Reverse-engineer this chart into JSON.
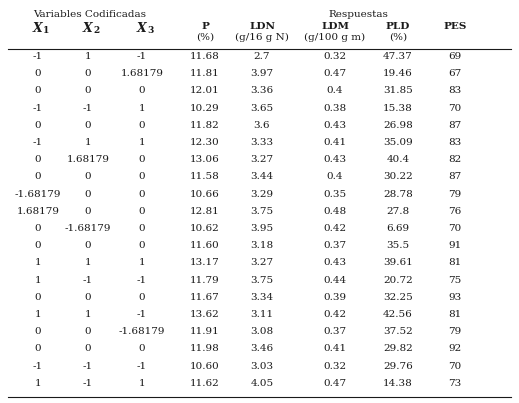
{
  "title_left": "Variables Codificadas",
  "title_right": "Respuestas",
  "rows": [
    [
      "-1",
      "1",
      "-1",
      "11.68",
      "2.7",
      "0.32",
      "47.37",
      "69"
    ],
    [
      "0",
      "0",
      "1.68179",
      "11.81",
      "3.97",
      "0.47",
      "19.46",
      "67"
    ],
    [
      "0",
      "0",
      "0",
      "12.01",
      "3.36",
      "0.4",
      "31.85",
      "83"
    ],
    [
      "-1",
      "-1",
      "1",
      "10.29",
      "3.65",
      "0.38",
      "15.38",
      "70"
    ],
    [
      "0",
      "0",
      "0",
      "11.82",
      "3.6",
      "0.43",
      "26.98",
      "87"
    ],
    [
      "-1",
      "1",
      "1",
      "12.30",
      "3.33",
      "0.41",
      "35.09",
      "83"
    ],
    [
      "0",
      "1.68179",
      "0",
      "13.06",
      "3.27",
      "0.43",
      "40.4",
      "82"
    ],
    [
      "0",
      "0",
      "0",
      "11.58",
      "3.44",
      "0.4",
      "30.22",
      "87"
    ],
    [
      "-1.68179",
      "0",
      "0",
      "10.66",
      "3.29",
      "0.35",
      "28.78",
      "79"
    ],
    [
      "1.68179",
      "0",
      "0",
      "12.81",
      "3.75",
      "0.48",
      "27.8",
      "76"
    ],
    [
      "0",
      "-1.68179",
      "0",
      "10.62",
      "3.95",
      "0.42",
      "6.69",
      "70"
    ],
    [
      "0",
      "0",
      "0",
      "11.60",
      "3.18",
      "0.37",
      "35.5",
      "91"
    ],
    [
      "1",
      "1",
      "1",
      "13.17",
      "3.27",
      "0.43",
      "39.61",
      "81"
    ],
    [
      "1",
      "-1",
      "-1",
      "11.79",
      "3.75",
      "0.44",
      "20.72",
      "75"
    ],
    [
      "0",
      "0",
      "0",
      "11.67",
      "3.34",
      "0.39",
      "32.25",
      "93"
    ],
    [
      "1",
      "1",
      "-1",
      "13.62",
      "3.11",
      "0.42",
      "42.56",
      "81"
    ],
    [
      "0",
      "0",
      "-1.68179",
      "11.91",
      "3.08",
      "0.37",
      "37.52",
      "79"
    ],
    [
      "0",
      "0",
      "0",
      "11.98",
      "3.46",
      "0.41",
      "29.82",
      "92"
    ],
    [
      "-1",
      "-1",
      "-1",
      "10.60",
      "3.03",
      "0.32",
      "29.76",
      "70"
    ],
    [
      "1",
      "-1",
      "1",
      "11.62",
      "4.05",
      "0.47",
      "14.38",
      "73"
    ]
  ],
  "font_color": "#1a1a1a",
  "bg_color": "#ffffff",
  "font_size": 7.5
}
